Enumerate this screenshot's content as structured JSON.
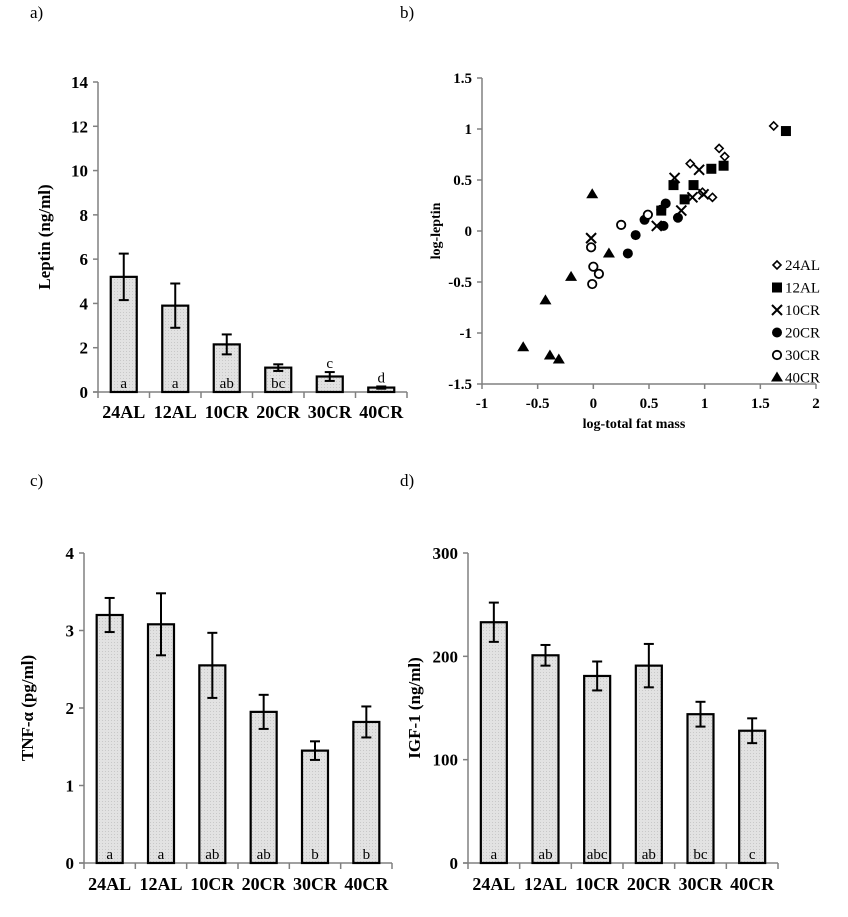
{
  "chart_data": [
    {
      "panel": "a)",
      "type": "bar",
      "title": "",
      "xlabel": "",
      "ylabel": "Leptin (ng/ml)",
      "categories": [
        "24AL",
        "12AL",
        "10CR",
        "20CR",
        "30CR",
        "40CR"
      ],
      "values": [
        5.2,
        3.9,
        2.15,
        1.1,
        0.7,
        0.2
      ],
      "errors": [
        1.05,
        1.0,
        0.45,
        0.15,
        0.2,
        0.05
      ],
      "significance_letters": [
        "a",
        "a",
        "ab",
        "bc",
        "c",
        "d"
      ],
      "significance_letter_position": [
        "inside",
        "inside",
        "inside",
        "inside",
        "above",
        "above"
      ],
      "ylim": [
        0,
        14
      ],
      "yticks": [
        0,
        2,
        4,
        6,
        8,
        10,
        12,
        14
      ],
      "ytick_labels": [
        "0",
        "2",
        "4",
        "6",
        "8",
        "10",
        "12",
        "14"
      ],
      "grid": false
    },
    {
      "panel": "b)",
      "type": "scatter",
      "title": "",
      "xlabel": "log-total fat mass",
      "ylabel": "log-leptin",
      "xlim": [
        -1,
        2
      ],
      "ylim": [
        -1.5,
        1.5
      ],
      "xticks": [
        -1,
        -0.5,
        0,
        0.5,
        1,
        1.5,
        2
      ],
      "xtick_labels": [
        "-1",
        "-0.5",
        "0",
        "0.5",
        "1",
        "1.5",
        "2"
      ],
      "yticks": [
        -1.5,
        -1,
        -0.5,
        0,
        0.5,
        1,
        1.5
      ],
      "ytick_labels": [
        "-1.5",
        "-1",
        "-0.5",
        "0",
        "0.5",
        "1",
        "1.5"
      ],
      "grid": false,
      "legend_position": "bottom-right",
      "series": [
        {
          "name": "24AL",
          "marker": "open-diamond",
          "points": [
            [
              1.62,
              1.03
            ],
            [
              1.13,
              0.81
            ],
            [
              1.18,
              0.73
            ],
            [
              0.87,
              0.66
            ],
            [
              1.07,
              0.33
            ],
            [
              0.98,
              0.38
            ]
          ]
        },
        {
          "name": "12AL",
          "marker": "filled-square",
          "points": [
            [
              1.73,
              0.98
            ],
            [
              1.06,
              0.61
            ],
            [
              1.17,
              0.64
            ],
            [
              0.72,
              0.45
            ],
            [
              0.9,
              0.45
            ],
            [
              0.82,
              0.31
            ],
            [
              0.61,
              0.2
            ]
          ]
        },
        {
          "name": "10CR",
          "marker": "cross",
          "points": [
            [
              0.73,
              0.52
            ],
            [
              0.95,
              0.6
            ],
            [
              0.89,
              0.33
            ],
            [
              0.99,
              0.36
            ],
            [
              0.79,
              0.2
            ],
            [
              0.57,
              0.05
            ],
            [
              -0.02,
              -0.07
            ]
          ]
        },
        {
          "name": "20CR",
          "marker": "filled-circle",
          "points": [
            [
              0.65,
              0.27
            ],
            [
              0.61,
              0.21
            ],
            [
              0.46,
              0.11
            ],
            [
              0.63,
              0.05
            ],
            [
              0.76,
              0.13
            ],
            [
              0.38,
              -0.04
            ],
            [
              0.31,
              -0.22
            ]
          ]
        },
        {
          "name": "30CR",
          "marker": "open-circle",
          "points": [
            [
              0.49,
              0.16
            ],
            [
              0.25,
              0.06
            ],
            [
              -0.02,
              -0.16
            ],
            [
              0.0,
              -0.35
            ],
            [
              0.05,
              -0.42
            ],
            [
              -0.01,
              -0.52
            ]
          ]
        },
        {
          "name": "40CR",
          "marker": "filled-triangle",
          "points": [
            [
              -0.01,
              0.36
            ],
            [
              0.14,
              -0.22
            ],
            [
              -0.2,
              -0.45
            ],
            [
              -0.43,
              -0.68
            ],
            [
              -0.63,
              -1.14
            ],
            [
              -0.39,
              -1.22
            ],
            [
              -0.31,
              -1.26
            ]
          ]
        }
      ]
    },
    {
      "panel": "c)",
      "type": "bar",
      "title": "",
      "xlabel": "",
      "ylabel": "TNF-α (pg/ml)",
      "categories": [
        "24AL",
        "12AL",
        "10CR",
        "20CR",
        "30CR",
        "40CR"
      ],
      "values": [
        3.2,
        3.08,
        2.55,
        1.95,
        1.45,
        1.82
      ],
      "errors": [
        0.22,
        0.4,
        0.42,
        0.22,
        0.12,
        0.2
      ],
      "significance_letters": [
        "a",
        "a",
        "ab",
        "ab",
        "b",
        "b"
      ],
      "significance_letter_position": [
        "inside",
        "inside",
        "inside",
        "inside",
        "inside",
        "inside"
      ],
      "ylim": [
        0,
        4
      ],
      "yticks": [
        0,
        1,
        2,
        3,
        4
      ],
      "ytick_labels": [
        "0",
        "1",
        "2",
        "3",
        "4"
      ],
      "grid": false
    },
    {
      "panel": "d)",
      "type": "bar",
      "title": "",
      "xlabel": "",
      "ylabel": "IGF-1 (ng/ml)",
      "categories": [
        "24AL",
        "12AL",
        "10CR",
        "20CR",
        "30CR",
        "40CR"
      ],
      "values": [
        233,
        201,
        181,
        191,
        144,
        128
      ],
      "errors": [
        19,
        10,
        14,
        21,
        12,
        12
      ],
      "significance_letters": [
        "a",
        "ab",
        "abc",
        "ab",
        "bc",
        "c"
      ],
      "significance_letter_position": [
        "inside",
        "inside",
        "inside",
        "inside",
        "inside",
        "inside"
      ],
      "ylim": [
        0,
        300
      ],
      "yticks": [
        0,
        100,
        200,
        300
      ],
      "ytick_labels": [
        "0",
        "100",
        "200",
        "300"
      ],
      "grid": false
    }
  ]
}
